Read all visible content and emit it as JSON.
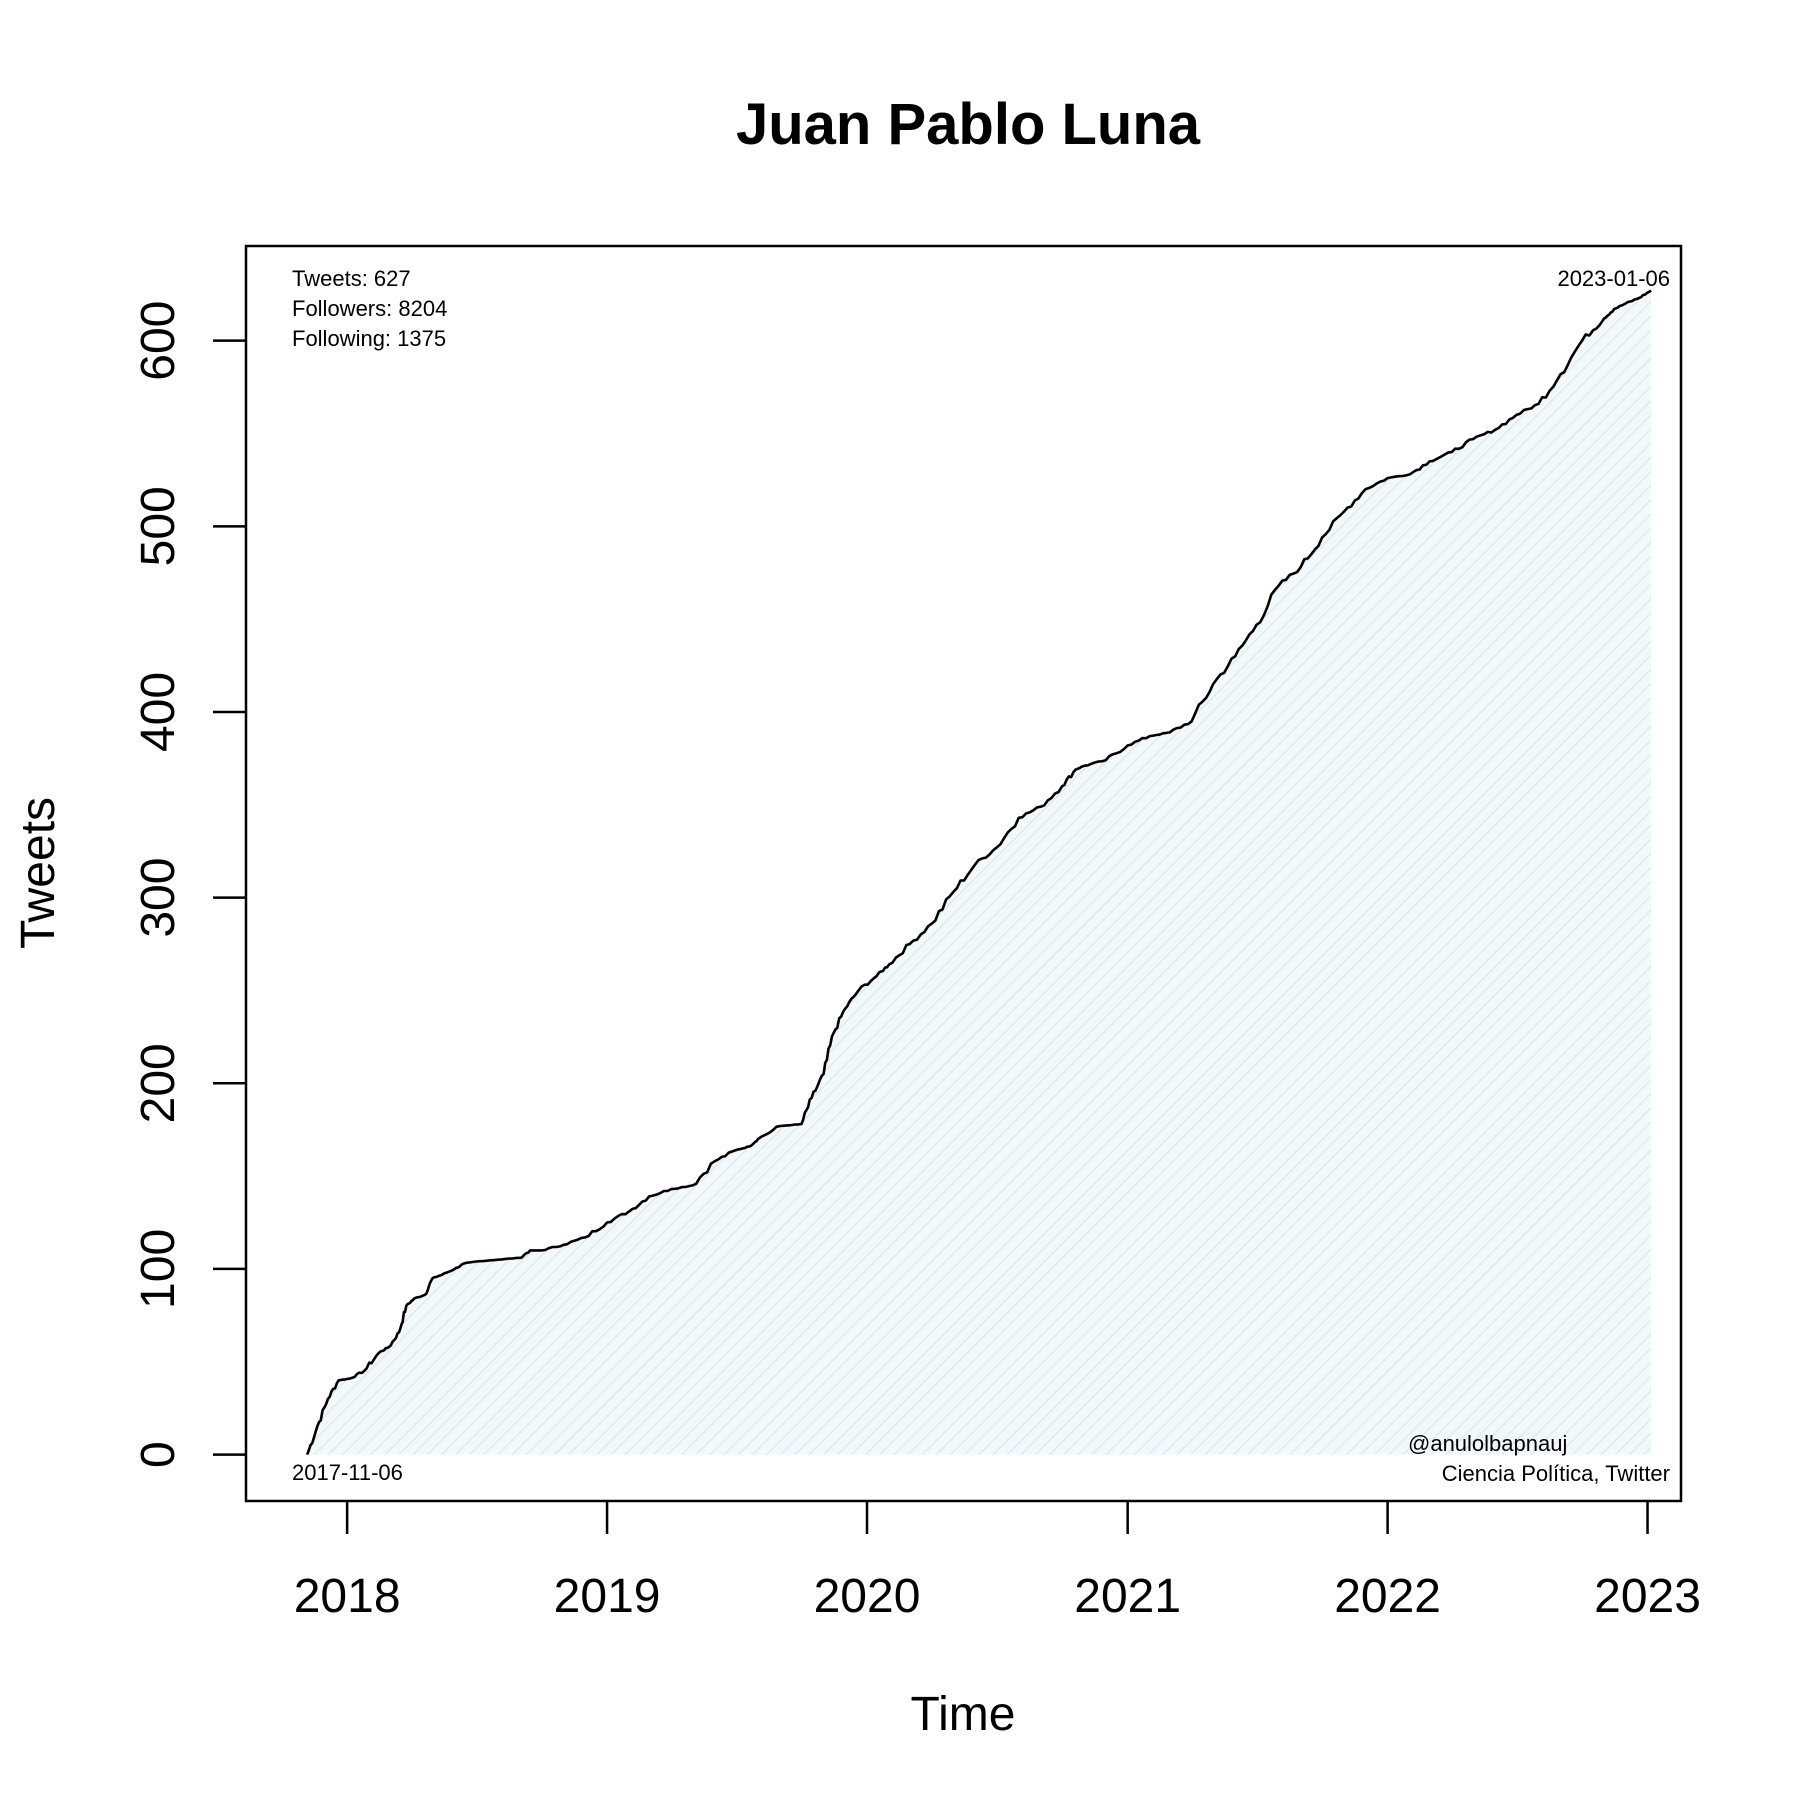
{
  "chart_data": {
    "type": "area",
    "title": "Juan Pablo Luna",
    "xlabel": "Time",
    "ylabel": "Tweets",
    "x_ticks": [
      "2018",
      "2019",
      "2020",
      "2021",
      "2022",
      "2023"
    ],
    "y_ticks": [
      "0",
      "100",
      "200",
      "300",
      "400",
      "500",
      "600"
    ],
    "xlim": [
      "2017-08-12",
      "2023-02-17"
    ],
    "ylim": [
      -25,
      651
    ],
    "fill_color": "#dcebf2",
    "line_color": "#000000",
    "grid": false,
    "series": [
      {
        "x": [
          "2017-11-06",
          "2017-11-20",
          "2017-12-05",
          "2017-12-20",
          "2018-01-05",
          "2018-01-25",
          "2018-02-15",
          "2018-03-01",
          "2018-03-15",
          "2018-03-25",
          "2018-04-05",
          "2018-04-20",
          "2018-05-01",
          "2018-05-15",
          "2018-06-01",
          "2018-06-15",
          "2018-07-01",
          "2018-08-01",
          "2018-09-01",
          "2018-09-15",
          "2018-10-01",
          "2018-11-01",
          "2018-12-01",
          "2019-01-01",
          "2019-02-01",
          "2019-03-01",
          "2019-04-01",
          "2019-05-01",
          "2019-06-01",
          "2019-07-01",
          "2019-07-20",
          "2019-08-01",
          "2019-09-01",
          "2019-10-01",
          "2019-10-15",
          "2019-11-01",
          "2019-11-15",
          "2019-12-01",
          "2019-12-20",
          "2020-01-15",
          "2020-02-01",
          "2020-03-01",
          "2020-04-01",
          "2020-05-01",
          "2020-06-01",
          "2020-07-01",
          "2020-08-01",
          "2020-09-01",
          "2020-10-01",
          "2020-10-20",
          "2020-11-01",
          "2020-12-01",
          "2021-01-01",
          "2021-02-01",
          "2021-03-01",
          "2021-04-01",
          "2021-05-01",
          "2021-06-01",
          "2021-07-01",
          "2021-08-01",
          "2021-09-01",
          "2021-10-01",
          "2021-11-01",
          "2021-12-01",
          "2022-01-01",
          "2022-02-01",
          "2022-03-01",
          "2022-04-01",
          "2022-05-01",
          "2022-06-01",
          "2022-07-01",
          "2022-08-01",
          "2022-09-01",
          "2022-10-01",
          "2022-11-01",
          "2022-11-15",
          "2022-12-01",
          "2022-12-20",
          "2023-01-06"
        ],
        "values": [
          0,
          15,
          30,
          40,
          41,
          45,
          55,
          58,
          66,
          80,
          84,
          86,
          95,
          97,
          100,
          103,
          104,
          105,
          106,
          110,
          110,
          113,
          117,
          125,
          131,
          139,
          143,
          145,
          158,
          164,
          166,
          170,
          177,
          178,
          192,
          205,
          227,
          240,
          250,
          258,
          264,
          275,
          286,
          303,
          318,
          327,
          343,
          349,
          360,
          369,
          371,
          374,
          382,
          387,
          389,
          395,
          415,
          430,
          447,
          468,
          478,
          494,
          508,
          520,
          526,
          528,
          535,
          540,
          547,
          552,
          560,
          566,
          582,
          600,
          612,
          617,
          620,
          623,
          627
        ]
      }
    ]
  },
  "annotations": {
    "tweets": "Tweets: 627",
    "followers": "Followers: 8204",
    "following": "Following: 1375",
    "end_date": "2023-01-06",
    "start_date": "2017-11-06",
    "handle": "@anulolbapnauj",
    "source": "Ciencia Política, Twitter"
  }
}
